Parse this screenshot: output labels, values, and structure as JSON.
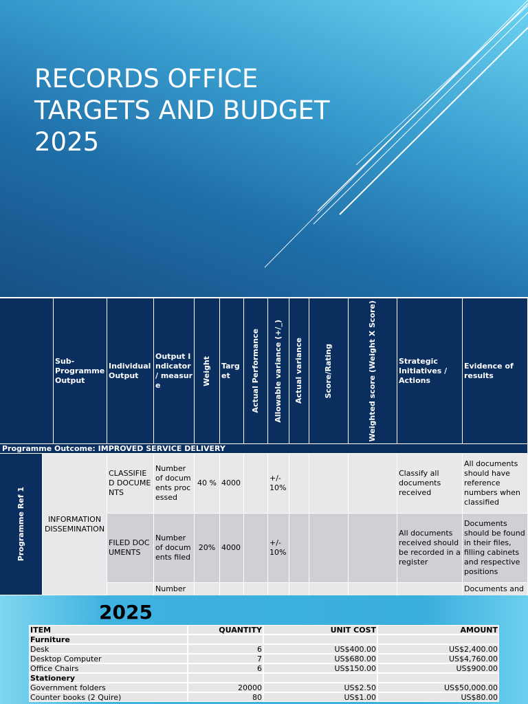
{
  "title": {
    "lines": [
      "RECORDS OFFICE",
      "TARGETS AND BUDGET",
      "2025"
    ]
  },
  "targets": {
    "headers": [
      "Sub-Programme Output",
      "Individual Output",
      "Output Indicator / measure",
      "Weight",
      "Target",
      "Actual Performance",
      "Allowable variance (+/_)",
      "Actual variance",
      "Score/Rating",
      "Weighted score (Weight X Score)",
      "Strategic Initiatives / Actions",
      "Evidence of results"
    ],
    "outcome": "Programme Outcome: IMPROVED SERVICE DELIVERY",
    "programme": "Programme Ref 1",
    "sub_programme": "INFORMATION DISSEMINATION",
    "rows": [
      {
        "output": "CLASSIFIED DOCUMENTS",
        "indicator": "Number of documents processed",
        "weight": "40 %",
        "target": 4000,
        "variance": "+/- 10%",
        "initiative": "Classify all documents received",
        "evidence": "All documents should have reference numbers when classified"
      },
      {
        "output": " FILED DOCUMENTS",
        "indicator": "Number of documents filed",
        "weight": "20%",
        "target": 4000,
        "variance": "+/- 10%",
        "initiative": "All documents received should  be recorded in a register",
        "evidence": "Documents should  be found  in their files, filling cabinets  and respective positions"
      },
      {
        "indicator": "Number",
        "evidence": "Documents and"
      }
    ]
  },
  "budget": {
    "title": "2025",
    "headers": [
      "ITEM",
      "QUANTITY",
      "UNIT COST",
      "AMOUNT"
    ],
    "rows": [
      {
        "category": "Furniture"
      },
      {
        "item": "Desk",
        "quantity": 6,
        "unit_cost": "US$400.00",
        "amount": "US$2,400.00"
      },
      {
        "item": "Desktop Computer",
        "quantity": 7,
        "unit_cost": "US$680.00",
        "amount": "US$4,760.00"
      },
      {
        "item": "Office Chairs",
        "quantity": 6,
        "unit_cost": "US$150.00",
        "amount": "US$900.00"
      },
      {
        "category": "Stationery"
      },
      {
        "item": "Government folders",
        "quantity": 20000,
        "unit_cost": "US$2.50",
        "amount": "US$50,000.00"
      },
      {
        "item": "Counter books (2 Quire)",
        "quantity": 80,
        "unit_cost": "US$1.00",
        "amount": "US$80.00"
      }
    ]
  }
}
